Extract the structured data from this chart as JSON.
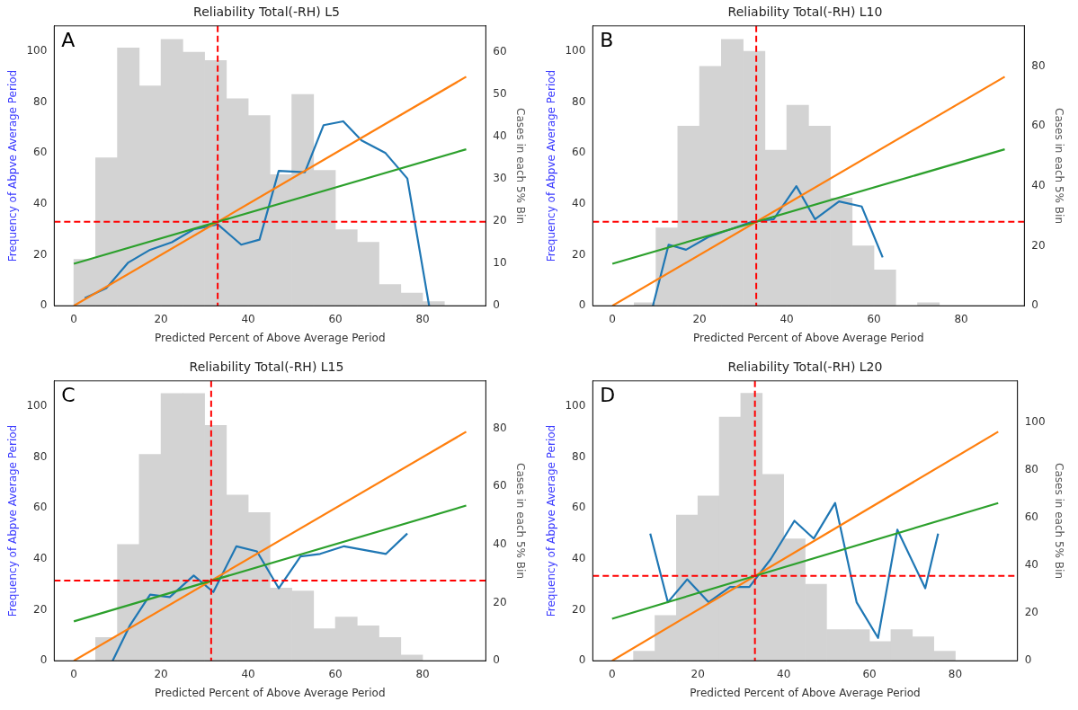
{
  "chart_data": [
    {
      "type": "line",
      "title": "Reliability Total(-RH) L5",
      "xlabel": "Predicted Percent of Above Average Period",
      "ylabel": "Frequency of Abpve Average Period",
      "y2label": "Cases in each 5% Bin",
      "annotations": [
        "A"
      ],
      "xlim": [
        -4.5,
        94.5
      ],
      "xticks": [
        0,
        20,
        40,
        60,
        80
      ],
      "ylim": [
        0,
        110
      ],
      "yticks": [
        0,
        20,
        40,
        60,
        80,
        100
      ],
      "y2lim": [
        0,
        66.2
      ],
      "y2ticks": [
        0,
        10,
        20,
        30,
        40,
        50,
        60
      ],
      "ref_lines": [
        {
          "axis": "x",
          "value": 33,
          "color": "#ff0000",
          "line_style": "dashed"
        },
        {
          "axis": "y",
          "value": 33,
          "color": "#ff0000",
          "line_style": "dashed"
        }
      ],
      "series": [
        {
          "type": "histogram",
          "axis": "y2",
          "color": "#d3d3d3",
          "bins": [
            0,
            5,
            10,
            15,
            20,
            25,
            30,
            35,
            40,
            45,
            50,
            55,
            60,
            65,
            70,
            75,
            80,
            85
          ],
          "values": [
            11,
            35,
            61,
            52,
            63,
            60,
            58,
            49,
            45,
            31,
            50,
            32,
            18,
            15,
            5,
            3,
            1
          ]
        },
        {
          "color": "#1f77b4",
          "x": [
            2.5,
            7.5,
            12.5,
            17.5,
            22.5,
            27.5,
            33,
            38.4,
            42.6,
            47,
            53,
            57.3,
            61.8,
            66,
            71.5,
            76.5,
            81.5
          ],
          "values": [
            3,
            7,
            17,
            22,
            25,
            30,
            32,
            24,
            26,
            53,
            52.5,
            71,
            72.5,
            65,
            60,
            50,
            0
          ]
        },
        {
          "color": "#ff7f0e",
          "x": [
            0,
            90
          ],
          "values": [
            0,
            90
          ]
        },
        {
          "color": "#2ca02c",
          "x": [
            0,
            90
          ],
          "values": [
            16.5,
            61.5
          ]
        }
      ]
    },
    {
      "type": "line",
      "title": "Reliability Total(-RH) L10",
      "xlabel": "Predicted Percent of Above Average Period",
      "ylabel": "Frequency of Abpve Average Period",
      "y2label": "Cases in each 5% Bin",
      "annotations": [
        "B"
      ],
      "xlim": [
        -4.5,
        94.5
      ],
      "xticks": [
        0,
        20,
        40,
        60,
        80
      ],
      "ylim": [
        0,
        110
      ],
      "yticks": [
        0,
        20,
        40,
        60,
        80,
        100
      ],
      "y2lim": [
        0,
        93.5
      ],
      "y2ticks": [
        0,
        20,
        40,
        60,
        80
      ],
      "ref_lines": [
        {
          "axis": "x",
          "value": 33,
          "color": "#ff0000",
          "line_style": "dashed"
        },
        {
          "axis": "y",
          "value": 33,
          "color": "#ff0000",
          "line_style": "dashed"
        }
      ],
      "series": [
        {
          "type": "histogram",
          "axis": "y2",
          "color": "#d3d3d3",
          "bins": [
            5,
            10,
            15,
            20,
            25,
            30,
            35,
            40,
            45,
            50,
            55,
            60,
            65,
            70,
            75
          ],
          "values": [
            1,
            26,
            60,
            80,
            89,
            85,
            52,
            67,
            60,
            36,
            20,
            12,
            0,
            1
          ]
        },
        {
          "color": "#1f77b4",
          "x": [
            9.3,
            12.9,
            16.9,
            22,
            27,
            32,
            37,
            42.2,
            46.5,
            52,
            57.2,
            62
          ],
          "values": [
            0,
            24,
            22,
            27,
            30,
            33,
            34,
            47,
            34,
            41,
            39,
            19
          ]
        },
        {
          "color": "#ff7f0e",
          "x": [
            0,
            90
          ],
          "values": [
            0,
            90
          ]
        },
        {
          "color": "#2ca02c",
          "x": [
            0,
            90
          ],
          "values": [
            16.5,
            61.5
          ]
        }
      ]
    },
    {
      "type": "line",
      "title": "Reliability Total(-RH) L15",
      "xlabel": "Predicted Percent of Above Average Period",
      "ylabel": "Frequency of Abpve Average Period",
      "y2label": "Cases in each 5% Bin",
      "annotations": [
        "C"
      ],
      "xlim": [
        -4.5,
        94.5
      ],
      "xticks": [
        0,
        20,
        40,
        60,
        80
      ],
      "ylim": [
        0,
        110
      ],
      "yticks": [
        0,
        20,
        40,
        60,
        80,
        100
      ],
      "y2lim": [
        0,
        96.3
      ],
      "y2ticks": [
        0,
        20,
        40,
        60,
        80
      ],
      "ref_lines": [
        {
          "axis": "x",
          "value": 31.5,
          "color": "#ff0000",
          "line_style": "dashed"
        },
        {
          "axis": "y",
          "value": 31.5,
          "color": "#ff0000",
          "line_style": "dashed"
        }
      ],
      "series": [
        {
          "type": "histogram",
          "axis": "y2",
          "color": "#d3d3d3",
          "bins": [
            5,
            10,
            15,
            20,
            25,
            30,
            35,
            40,
            45,
            50,
            55,
            60,
            65,
            70,
            75,
            80
          ],
          "values": [
            8,
            40,
            71,
            92,
            92,
            81,
            57,
            51,
            25,
            24,
            11,
            15,
            12,
            8,
            2
          ]
        },
        {
          "color": "#1f77b4",
          "x": [
            8.9,
            12.9,
            17.5,
            22,
            27.5,
            32,
            37.3,
            42,
            47,
            52,
            56.5,
            62,
            71.6,
            76.5
          ],
          "values": [
            0,
            14,
            26,
            25,
            33.5,
            27,
            45,
            43,
            28.5,
            41,
            42,
            45,
            42,
            50
          ]
        },
        {
          "color": "#ff7f0e",
          "x": [
            0,
            90
          ],
          "values": [
            0,
            90
          ]
        },
        {
          "color": "#2ca02c",
          "x": [
            0,
            90
          ],
          "values": [
            15.5,
            61
          ]
        }
      ]
    },
    {
      "type": "line",
      "title": "Reliability Total(-RH) L20",
      "xlabel": "Predicted Percent of Above Average Period",
      "ylabel": "Frequency of Abpve Average Period",
      "y2label": "Cases in each 5% Bin",
      "annotations": [
        "D"
      ],
      "xlim": [
        -4.5,
        94.5
      ],
      "xticks": [
        0,
        20,
        40,
        60,
        80
      ],
      "ylim": [
        0,
        110
      ],
      "yticks": [
        0,
        20,
        40,
        60,
        80,
        100
      ],
      "y2lim": [
        0,
        117.2
      ],
      "y2ticks": [
        0,
        20,
        40,
        60,
        80,
        100
      ],
      "ref_lines": [
        {
          "axis": "x",
          "value": 33.3,
          "color": "#ff0000",
          "line_style": "dashed"
        },
        {
          "axis": "y",
          "value": 33.4,
          "color": "#ff0000",
          "line_style": "dashed"
        }
      ],
      "series": [
        {
          "type": "histogram",
          "axis": "y2",
          "color": "#d3d3d3",
          "bins": [
            5,
            10,
            15,
            20,
            25,
            30,
            35,
            40,
            45,
            50,
            55,
            60,
            65,
            70,
            75,
            80
          ],
          "values": [
            4,
            19,
            61,
            69,
            102,
            112,
            78,
            51,
            32,
            13,
            13,
            8,
            13,
            10,
            4
          ]
        },
        {
          "color": "#1f77b4",
          "x": [
            8.9,
            13,
            17.5,
            22.5,
            27.5,
            32,
            37,
            42.5,
            47,
            52,
            57,
            62,
            66.5,
            73,
            76
          ],
          "values": [
            50,
            23,
            32,
            23,
            29,
            29,
            40,
            55,
            48,
            62,
            23,
            9,
            51.5,
            28.5,
            50
          ]
        },
        {
          "color": "#ff7f0e",
          "x": [
            0,
            90
          ],
          "values": [
            0,
            90
          ]
        },
        {
          "color": "#2ca02c",
          "x": [
            0,
            90
          ],
          "values": [
            16.5,
            62
          ]
        }
      ]
    }
  ]
}
